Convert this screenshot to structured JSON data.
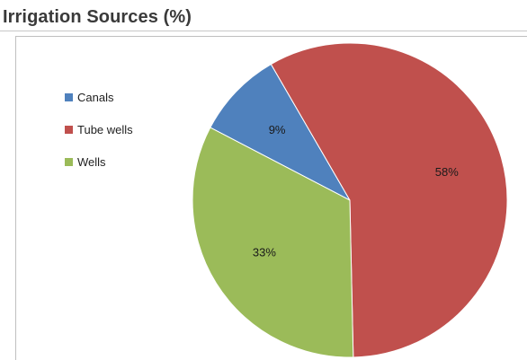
{
  "title": "Irrigation Sources (%)",
  "chart_data": {
    "type": "pie",
    "title": "Irrigation Sources (%)",
    "legend_position": "left",
    "slices": [
      {
        "name": "Canals",
        "value": 9,
        "label": "9%",
        "color": "#4f81bd"
      },
      {
        "name": "Tube wells",
        "value": 58,
        "label": "58%",
        "color": "#c0504d"
      },
      {
        "name": "Wells",
        "value": 33,
        "label": "33%",
        "color": "#9bbb59"
      }
    ]
  }
}
